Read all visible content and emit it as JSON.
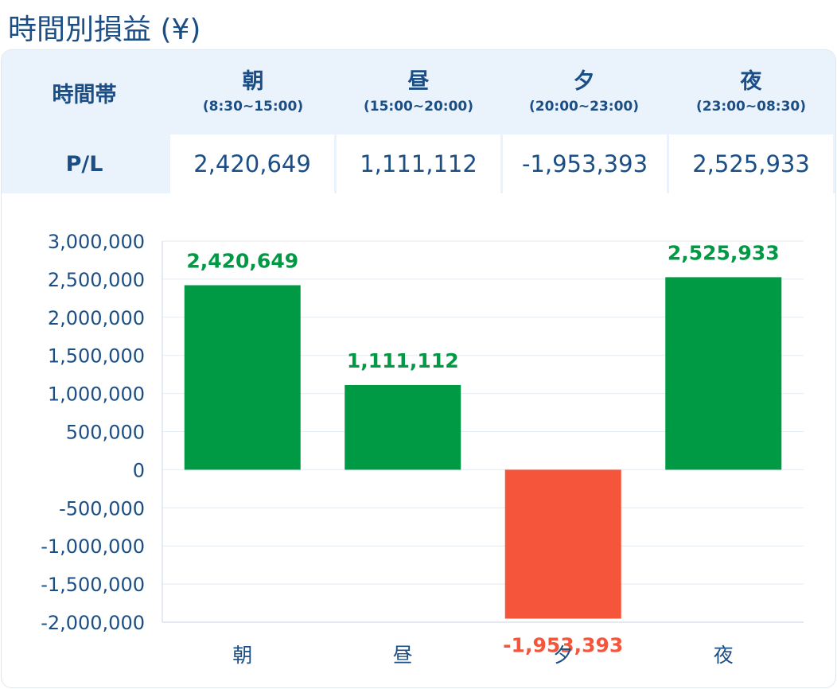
{
  "title": "時間別損益 (¥)",
  "table": {
    "header_label": "時間帯",
    "row_label": "P/L",
    "columns": [
      {
        "name": "朝",
        "range": "(8:30~15:00)",
        "value": "2,420,649"
      },
      {
        "name": "昼",
        "range": "(15:00~20:00)",
        "value": "1,111,112"
      },
      {
        "name": "夕",
        "range": "(20:00~23:00)",
        "value": "-1,953,393"
      },
      {
        "name": "夜",
        "range": "(23:00~08:30)",
        "value": "2,525,933"
      }
    ]
  },
  "colors": {
    "positive": "#009944",
    "negative": "#f5553a",
    "text": "#1c4e86",
    "grid": "#e4ebf1"
  },
  "chart_data": {
    "type": "bar",
    "categories": [
      "朝",
      "昼",
      "夕",
      "夜"
    ],
    "values": [
      2420649,
      1111112,
      -1953393,
      2525933
    ],
    "data_labels": [
      "2,420,649",
      "1,111,112",
      "-1,953,393",
      "2,525,933"
    ],
    "ylim": [
      -2000000,
      3000000
    ],
    "yticks": [
      3000000,
      2500000,
      2000000,
      1500000,
      1000000,
      500000,
      0,
      -500000,
      -1000000,
      -1500000,
      -2000000
    ],
    "ytick_labels": [
      "3,000,000",
      "2,500,000",
      "2,000,000",
      "1,500,000",
      "1,000,000",
      "500,000",
      "0",
      "-500,000",
      "-1,000,000",
      "-1,500,000",
      "-2,000,000"
    ],
    "grid": true
  }
}
